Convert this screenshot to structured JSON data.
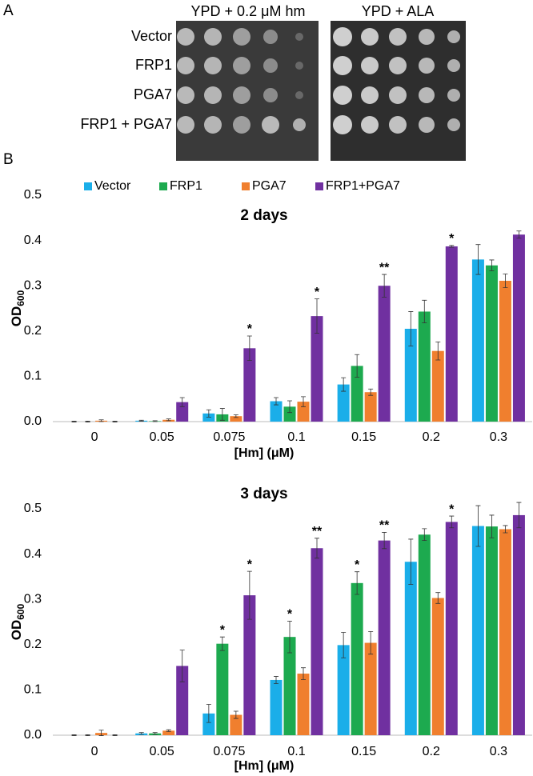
{
  "panel_a": {
    "label": "A",
    "conditions": [
      "YPD + 0.2 μM hm",
      "YPD + ALA"
    ],
    "strains": [
      "Vector",
      "FRP1",
      "PGA7",
      "FRP1 + PGA7"
    ]
  },
  "panel_b_label": "B",
  "chart_data": [
    {
      "type": "bar",
      "title": "2 days",
      "x_label": "[Hm] (μM)",
      "y_label": "OD",
      "y_label_sub": "600",
      "categories": [
        "0",
        "0.05",
        "0.075",
        "0.1",
        "0.15",
        "0.2",
        "0.3"
      ],
      "ylim": [
        0,
        0.5
      ],
      "yticks": [
        {
          "value": 0,
          "label": "0.0"
        },
        0.1,
        0.2,
        0.3,
        0.4,
        0.5
      ],
      "grid": false,
      "legend": "top",
      "series": [
        {
          "name": "Vector",
          "color": "#1aaee9",
          "values": [
            0,
            0.002,
            0.018,
            0.045,
            0.082,
            0.205,
            0.358
          ],
          "errors": [
            0.001,
            0.001,
            0.008,
            0.008,
            0.015,
            0.038,
            0.033
          ]
        },
        {
          "name": "FRP1",
          "color": "#1daa4f",
          "values": [
            0,
            0.001,
            0.016,
            0.033,
            0.123,
            0.243,
            0.345
          ],
          "errors": [
            0.001,
            0.001,
            0.013,
            0.013,
            0.025,
            0.025,
            0.012
          ]
        },
        {
          "name": "PGA7",
          "color": "#f07f2e",
          "values": [
            0.002,
            0.004,
            0.012,
            0.044,
            0.065,
            0.156,
            0.311
          ],
          "errors": [
            0.002,
            0.002,
            0.003,
            0.011,
            0.007,
            0.02,
            0.015
          ]
        },
        {
          "name": "FRP1+PGA7",
          "color": "#7030a0",
          "values": [
            0,
            0.043,
            0.162,
            0.233,
            0.3,
            0.387,
            0.413
          ],
          "errors": [
            0.001,
            0.01,
            0.027,
            0.038,
            0.025,
            0.002,
            0.008
          ],
          "annotations": [
            null,
            null,
            "*",
            "*",
            "**",
            "*",
            null
          ]
        }
      ]
    },
    {
      "type": "bar",
      "title": "3 days",
      "x_label": "[Hm] (μM)",
      "y_label": "OD",
      "y_label_sub": "600",
      "categories": [
        "0",
        "0.05",
        "0.075",
        "0.1",
        "0.15",
        "0.2",
        "0.3"
      ],
      "ylim": [
        0,
        0.5
      ],
      "yticks": [
        {
          "value": 0,
          "label": "0.0"
        },
        0.1,
        0.2,
        0.3,
        0.4,
        0.5
      ],
      "grid": false,
      "series": [
        {
          "color": "#1aaee9",
          "values": [
            0,
            0.004,
            0.048,
            0.122,
            0.199,
            0.383,
            0.462
          ],
          "errors": [
            0.001,
            0.002,
            0.02,
            0.008,
            0.028,
            0.05,
            0.045
          ]
        },
        {
          "color": "#1daa4f",
          "values": [
            0,
            0.004,
            0.202,
            0.217,
            0.336,
            0.443,
            0.461
          ],
          "errors": [
            0.001,
            0.002,
            0.015,
            0.035,
            0.025,
            0.013,
            0.025
          ],
          "annotations": [
            null,
            null,
            "*",
            "*",
            "*",
            null,
            null
          ]
        },
        {
          "color": "#f07f2e",
          "values": [
            0.005,
            0.01,
            0.045,
            0.136,
            0.204,
            0.303,
            0.455
          ],
          "errors": [
            0.006,
            0.002,
            0.008,
            0.013,
            0.025,
            0.012,
            0.008
          ]
        },
        {
          "color": "#7030a0",
          "values": [
            0,
            0.153,
            0.309,
            0.413,
            0.43,
            0.471,
            0.486
          ],
          "errors": [
            0.001,
            0.035,
            0.053,
            0.022,
            0.018,
            0.013,
            0.028
          ],
          "annotations": [
            null,
            null,
            "*",
            "**",
            "**",
            "*",
            null
          ]
        }
      ]
    }
  ]
}
